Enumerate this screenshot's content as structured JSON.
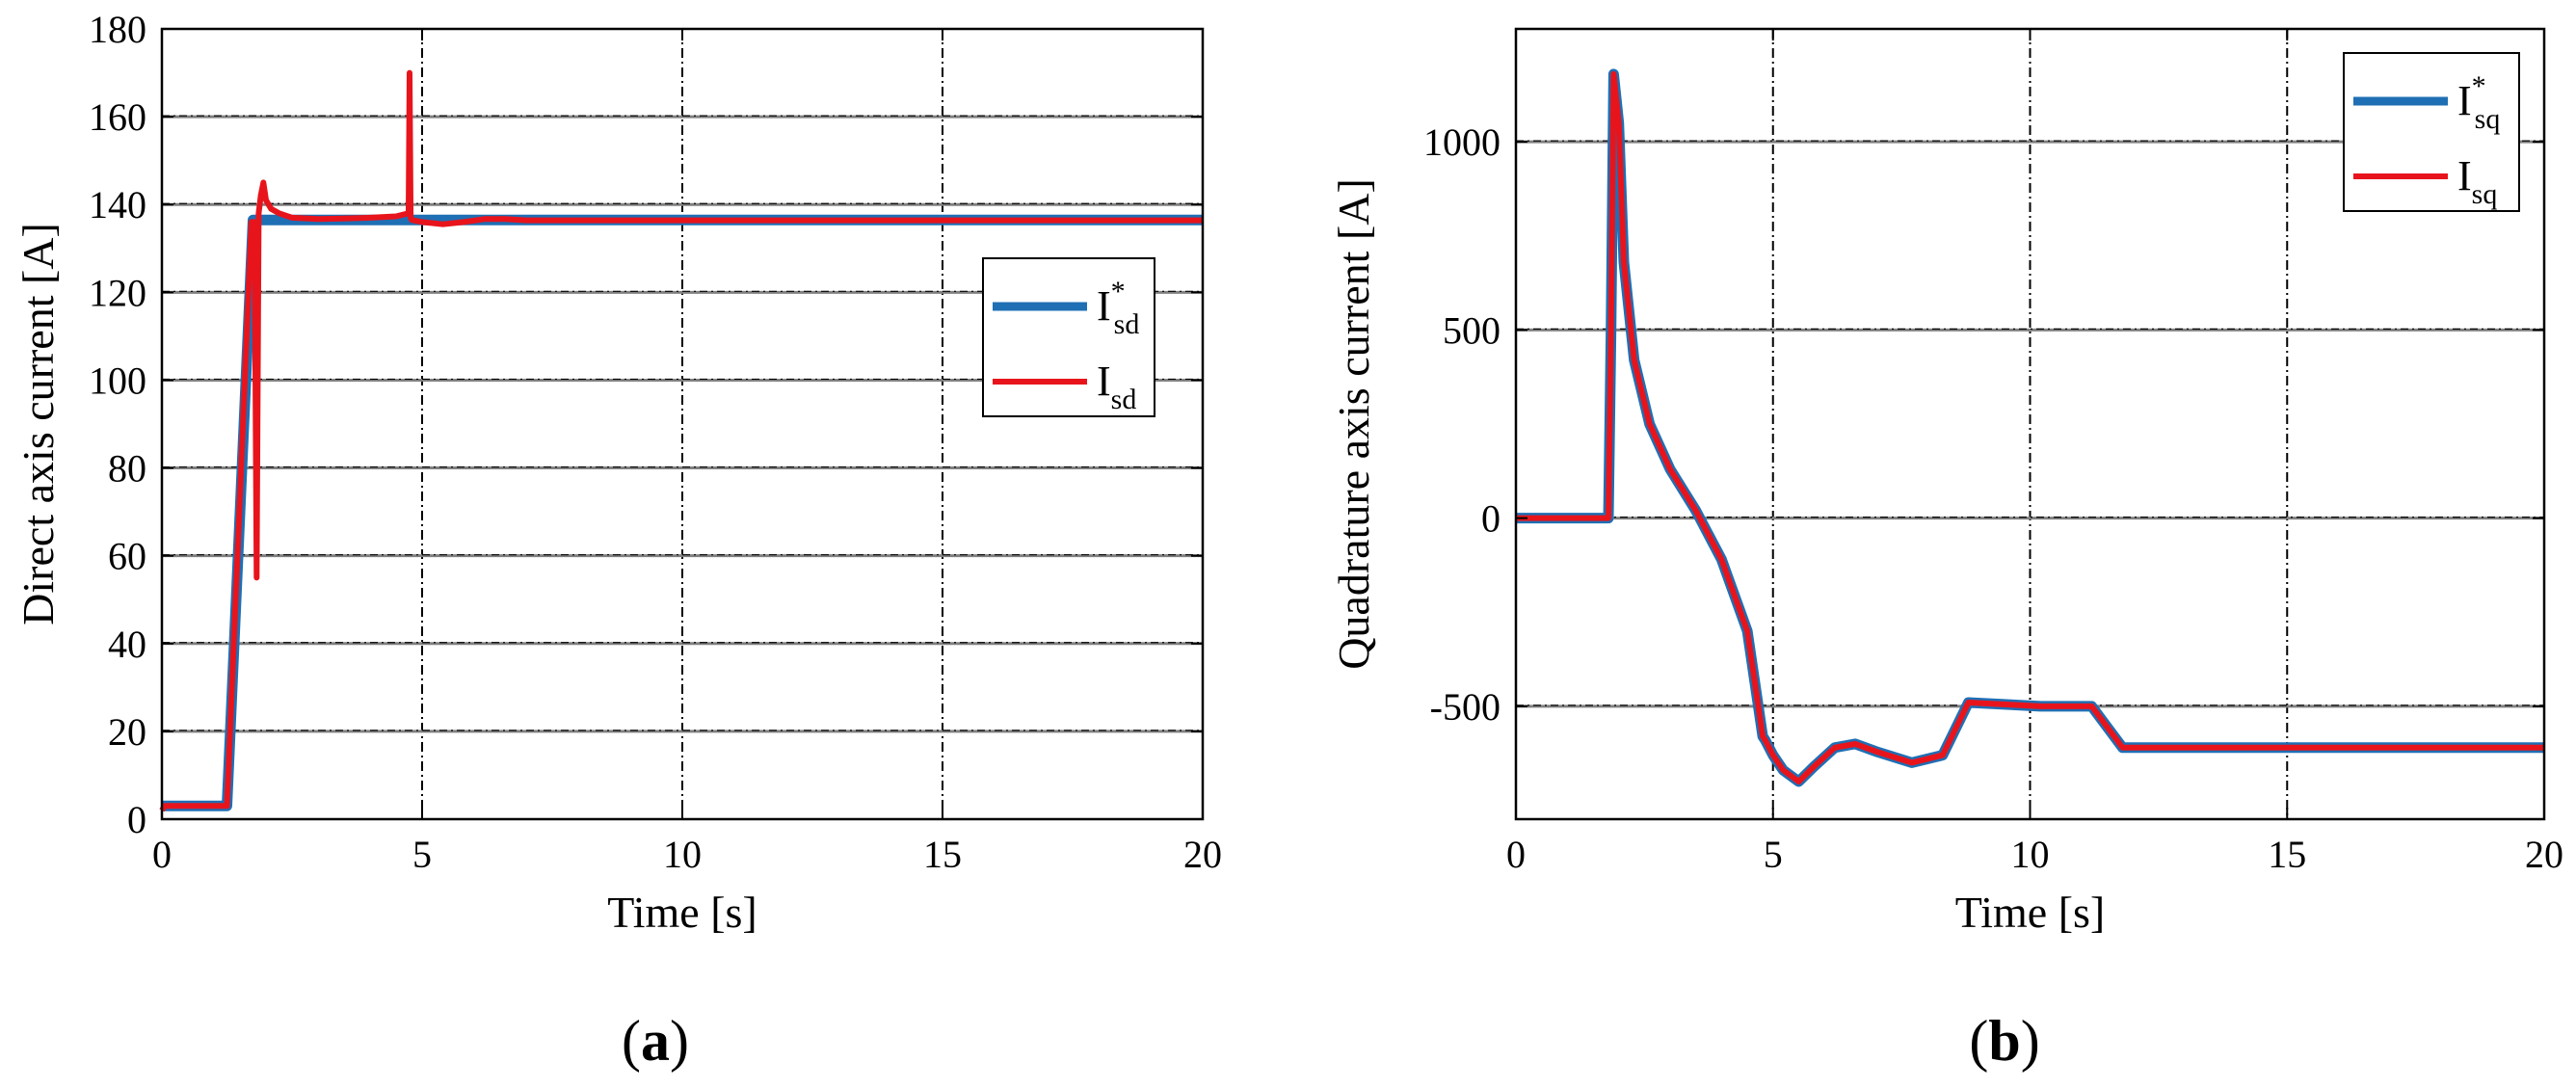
{
  "figure": {
    "panels": [
      {
        "open": "(",
        "letter": "a",
        "close": ")"
      },
      {
        "open": "(",
        "letter": "b",
        "close": ")"
      }
    ]
  },
  "chart_data": [
    {
      "type": "line",
      "panel": "a",
      "xlabel": "Time [s]",
      "ylabel": "Direct axis current [A]",
      "xlim": [
        0,
        20
      ],
      "ylim": [
        0,
        180
      ],
      "xticks": [
        0,
        5,
        10,
        15,
        20
      ],
      "yticks": [
        0,
        20,
        40,
        60,
        80,
        100,
        120,
        140,
        160,
        180
      ],
      "xtick_labels": [
        "0",
        "5",
        "10",
        "15",
        "20"
      ],
      "ytick_labels": [
        "0",
        "20",
        "40",
        "60",
        "80",
        "100",
        "120",
        "140",
        "160",
        "180"
      ],
      "grid": true,
      "legend": "right",
      "series": [
        {
          "name": "I*sd",
          "label_main": "I",
          "label_sup": "*",
          "label_sub": "sd",
          "color": "#1f6fb4",
          "x": [
            0,
            1.25,
            1.75,
            2.0,
            20
          ],
          "y": [
            3,
            3,
            136.5,
            136.5,
            136.5
          ]
        },
        {
          "name": "Isd",
          "label_main": "I",
          "label_sup": "",
          "label_sub": "sd",
          "color": "#e8141c",
          "x": [
            0,
            0.05,
            1.25,
            1.72,
            1.78,
            1.82,
            1.86,
            1.9,
            1.95,
            2.0,
            2.1,
            2.25,
            2.5,
            3.0,
            3.5,
            4.0,
            4.5,
            4.74,
            4.76,
            4.78,
            4.8,
            5.0,
            5.4,
            5.8,
            6.2,
            6.6,
            7.0,
            8.0,
            10.0,
            15.0,
            20.0
          ],
          "y": [
            2,
            3,
            3,
            136,
            136,
            55,
            138,
            142,
            145,
            141,
            139,
            138,
            137,
            136.7,
            136.8,
            137,
            137.3,
            138,
            170,
            137,
            136.5,
            136,
            135.5,
            136,
            136.7,
            136.7,
            136.4,
            136.4,
            136.4,
            136.4,
            136.4
          ]
        }
      ]
    },
    {
      "type": "line",
      "panel": "b",
      "xlabel": "Time [s]",
      "ylabel": "Quadrature axis current [A]",
      "xlim": [
        0,
        20
      ],
      "ylim": [
        -800,
        1300
      ],
      "xticks": [
        0,
        5,
        10,
        15,
        20
      ],
      "yticks": [
        -500,
        0,
        500,
        1000
      ],
      "xtick_labels": [
        "0",
        "5",
        "10",
        "15",
        "20"
      ],
      "ytick_labels": [
        "-500",
        "0",
        "500",
        "1000"
      ],
      "grid": true,
      "legend": "top-right",
      "series": [
        {
          "name": "I*sq",
          "label_main": "I",
          "label_sup": "*",
          "label_sub": "sq",
          "color": "#1f6fb4",
          "x": [
            0,
            1.8,
            1.85,
            1.9,
            2.0,
            2.1,
            2.3,
            2.6,
            3.0,
            3.5,
            4.0,
            4.5,
            4.8,
            4.85,
            5.0,
            5.2,
            5.5,
            5.8,
            6.2,
            6.6,
            7.0,
            7.7,
            8.3,
            8.8,
            9.5,
            10.2,
            11.2,
            11.8,
            13.0,
            20.0
          ],
          "y": [
            0,
            0,
            500,
            1180,
            1050,
            680,
            420,
            250,
            130,
            20,
            -110,
            -300,
            -580,
            -590,
            -630,
            -670,
            -700,
            -660,
            -610,
            -600,
            -620,
            -650,
            -630,
            -490,
            -495,
            -500,
            -500,
            -610,
            -610,
            -610
          ]
        },
        {
          "name": "Isq",
          "label_main": "I",
          "label_sup": "",
          "label_sub": "sq",
          "color": "#e8141c",
          "x": [
            0,
            1.8,
            1.85,
            1.9,
            2.0,
            2.1,
            2.3,
            2.6,
            3.0,
            3.5,
            4.0,
            4.5,
            4.8,
            4.85,
            5.0,
            5.2,
            5.5,
            5.8,
            6.2,
            6.6,
            7.0,
            7.7,
            8.3,
            8.8,
            9.5,
            10.2,
            11.2,
            11.8,
            13.0,
            20.0
          ],
          "y": [
            0,
            0,
            500,
            1180,
            1050,
            680,
            420,
            250,
            130,
            20,
            -110,
            -300,
            -580,
            -590,
            -630,
            -670,
            -700,
            -660,
            -610,
            -600,
            -620,
            -650,
            -630,
            -490,
            -495,
            -500,
            -500,
            -610,
            -610,
            -610
          ]
        }
      ]
    }
  ]
}
